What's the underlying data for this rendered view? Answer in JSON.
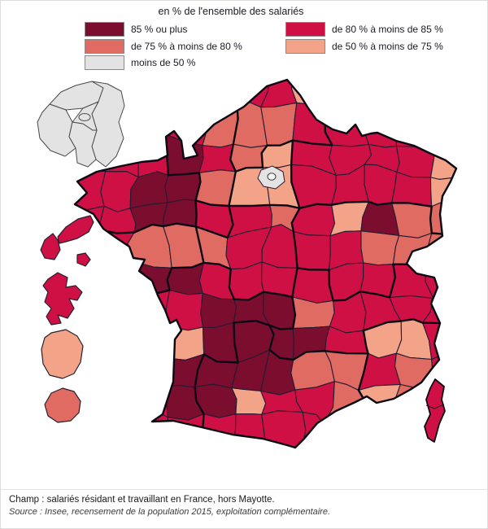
{
  "title": "en % de l'ensemble des salariés",
  "legend": {
    "swatch_border": "#8a8a8a",
    "items": [
      {
        "key": "cl85plus",
        "label": "85 % ou plus",
        "color": "#7b0d2e",
        "col": 1,
        "row": 1
      },
      {
        "key": "cl80to85",
        "label": "de 80 % à moins de 85 %",
        "color": "#ce1044",
        "col": 2,
        "row": 1
      },
      {
        "key": "cl75to80",
        "label": "de 75 % à moins de 80 %",
        "color": "#e06b62",
        "col": 1,
        "row": 2
      },
      {
        "key": "cl50to75",
        "label": "de 50 % à moins de 75 %",
        "color": "#f3a488",
        "col": 2,
        "row": 2
      },
      {
        "key": "clUnder50",
        "label": "moins de 50 %",
        "color": "#e3e3e3",
        "col": 1,
        "row": 3
      }
    ]
  },
  "map_data": {
    "type": "choropleth",
    "geography": "France by department, with Île-de-France inset and overseas departments",
    "classes": {
      "D": "cl85plus",
      "C": "cl80to85",
      "S": "cl75to80",
      "L": "cl50to75",
      "G": "clUnder50"
    },
    "class_grid": [
      "CCCCCCCLCCCC",
      "CCCCSSSCCCCC",
      "CCCDCSLCCCCL",
      "CCDDSLLCCCCL",
      "CCDDCCSCLDSS",
      "CCSSSCCCCSSS",
      "CCDDCCCCCCCC",
      "CCCCDDDSCCCC",
      "CCCLDDDDCLLC",
      "CCCDDDDSSCSC",
      "CCCDDLCCSLSC",
      "CCCCCCCCCCCC"
    ],
    "region_grid": [
      "NNNNHHHHGGGG",
      "NNNNNHHHGGGG",
      "BBBNNHIGGGGG",
      "BBBBNIIGGGGG",
      "BBBBPCCFFFFG",
      "BPPPCCCFFFFF",
      "PPPQQCCAFFAA",
      "QQQQQQQAAAAA",
      "QQQQQOAAAZZZ",
      "QQQQOOOOOZZZ",
      "QQQQOOOOOZZZ",
      "QQQQOOOOOZZZ"
    ],
    "paris_inner_class": "clUnder50",
    "idf_inset_class": "clUnder50",
    "corsica_class": "cl80to85",
    "overseas": [
      {
        "name": "guadeloupe",
        "class": "cl80to85"
      },
      {
        "name": "martinique",
        "class": "cl80to85"
      },
      {
        "name": "guyane",
        "class": "cl50to75"
      },
      {
        "name": "la-reunion",
        "class": "cl75to80"
      }
    ],
    "style": {
      "dept_border": "#241c30",
      "region_border": "#0b0913",
      "island_border": "#26202e",
      "inset_fill": "#e4e4e4",
      "inset_border": "#4a4a4a"
    }
  },
  "footer": {
    "champ": "Champ : salariés résidant et travaillant en France, hors Mayotte.",
    "source": "Source : Insee, recensement de la population 2015, exploitation complémentaire."
  }
}
